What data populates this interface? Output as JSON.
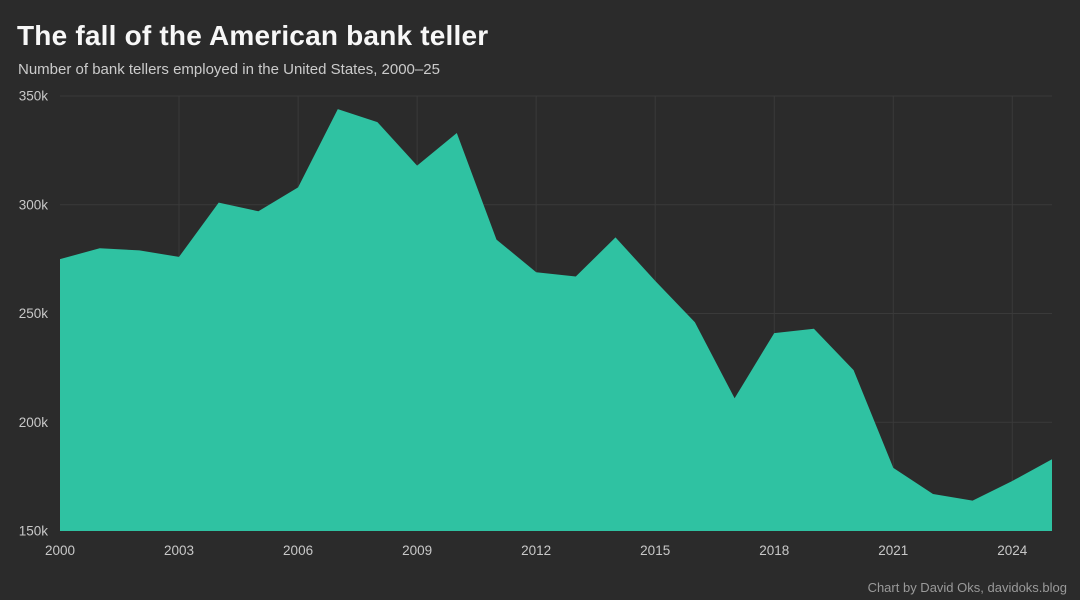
{
  "header": {
    "title": "The fall of the American bank teller",
    "subtitle": "Number of bank tellers employed in the United States, 2000–25"
  },
  "footer": {
    "credit": "Chart by David Oks, davidoks.blog"
  },
  "colors": {
    "background": "#2b2b2b",
    "area": "#2fc2a2",
    "grid": "#3a3a3a",
    "title": "#f7f7f7",
    "subtitle": "#cbcbcb",
    "tick_label": "#c8c8c8",
    "credit": "#9a9a9a"
  },
  "chart_data": {
    "type": "area",
    "title": "The fall of the American bank teller",
    "subtitle": "Number of bank tellers employed in the United States, 2000–25",
    "series_name": "Bank tellers employed in the United States",
    "unit": "thousands",
    "x": [
      2000,
      2001,
      2002,
      2003,
      2004,
      2005,
      2006,
      2007,
      2008,
      2009,
      2010,
      2011,
      2012,
      2013,
      2014,
      2015,
      2016,
      2017,
      2018,
      2019,
      2020,
      2021,
      2022,
      2023,
      2024,
      2025
    ],
    "values": [
      275,
      280,
      279,
      276,
      301,
      297,
      308,
      344,
      338,
      318,
      333,
      284,
      269,
      267,
      285,
      265,
      246,
      211,
      241,
      243,
      224,
      179,
      167,
      164,
      173,
      183
    ],
    "xlim": [
      2000,
      2025
    ],
    "ylim": [
      150,
      350
    ],
    "xticks": [
      {
        "value": 2000,
        "label": "2000"
      },
      {
        "value": 2003,
        "label": "2003"
      },
      {
        "value": 2006,
        "label": "2006"
      },
      {
        "value": 2009,
        "label": "2009"
      },
      {
        "value": 2012,
        "label": "2012"
      },
      {
        "value": 2015,
        "label": "2015"
      },
      {
        "value": 2018,
        "label": "2018"
      },
      {
        "value": 2021,
        "label": "2021"
      },
      {
        "value": 2024,
        "label": "2024"
      }
    ],
    "yticks": [
      {
        "value": 150,
        "label": "150k"
      },
      {
        "value": 200,
        "label": "200k"
      },
      {
        "value": 250,
        "label": "250k"
      },
      {
        "value": 300,
        "label": "300k"
      },
      {
        "value": 350,
        "label": "350k"
      }
    ],
    "grid": true,
    "legend": "none",
    "xlabel": "",
    "ylabel": ""
  }
}
